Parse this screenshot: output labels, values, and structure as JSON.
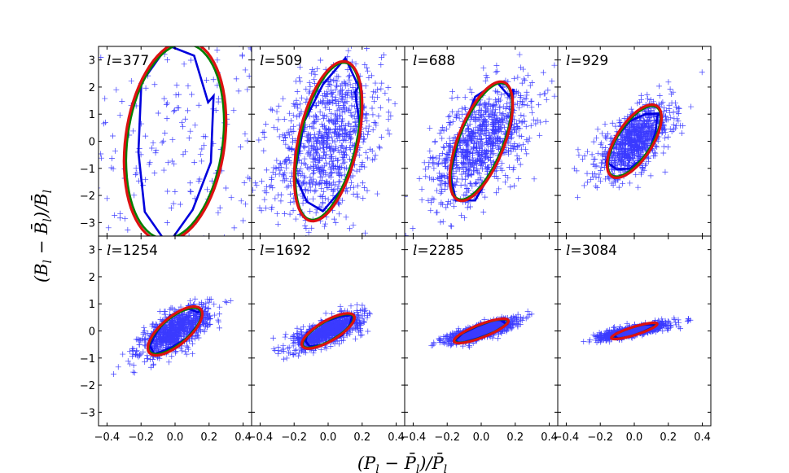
{
  "chart_data": {
    "type": "scatter",
    "layout": "2x4 grid of panels with shared axes",
    "xlabel": "(P_l - P̄_l)/P̄_l",
    "ylabel": "(B_l - B̄_l)/B̄_l",
    "xlim": [
      -0.45,
      0.45
    ],
    "ylim": [
      -3.5,
      3.5
    ],
    "xticks": [
      -0.4,
      -0.2,
      0.0,
      0.2,
      0.4
    ],
    "xtick_labels": [
      "−0.4",
      "−0.2",
      "0.0",
      "0.2",
      "0.4"
    ],
    "yticks": [
      -3,
      -2,
      -1,
      0,
      1,
      2,
      3
    ],
    "ytick_labels": [
      "−3",
      "−2",
      "−1",
      "0",
      "1",
      "2",
      "3"
    ],
    "label_prefix": "l =",
    "series_styles": [
      {
        "name": "samples",
        "marker": "+",
        "color": "#3b3bff"
      },
      {
        "name": "contour",
        "color": "#0000dd"
      },
      {
        "name": "ellipse-green",
        "color": "#008000"
      },
      {
        "name": "ellipse-red",
        "color": "#dd1111"
      }
    ],
    "panels": [
      {
        "ell": 377,
        "n_points": 420,
        "sx": 0.8,
        "sy": 2.3,
        "rho": 0.15,
        "ell_red": {
          "a": 0.3,
          "b": 3.7,
          "rho": 0.2
        },
        "ell_green": {
          "a": 0.288,
          "b": 3.6,
          "rho": 0.2
        },
        "contour": {
          "a": 0.235,
          "b": 3.6,
          "rho": 0.12
        }
      },
      {
        "ell": 509,
        "n_points": 900,
        "sx": 0.16,
        "sy": 1.45,
        "rho": 0.35,
        "ell_red": {
          "a": 0.2,
          "b": 2.95,
          "rho": 0.45
        },
        "ell_green": {
          "a": 0.192,
          "b": 2.9,
          "rho": 0.48
        },
        "contour": {
          "a": 0.185,
          "b": 2.8,
          "rho": 0.42
        }
      },
      {
        "ell": 688,
        "n_points": 900,
        "sx": 0.15,
        "sy": 1.1,
        "rho": 0.55,
        "ell_red": {
          "a": 0.185,
          "b": 2.2,
          "rho": 0.62
        },
        "ell_green": {
          "a": 0.18,
          "b": 2.15,
          "rho": 0.65
        },
        "contour": {
          "a": 0.19,
          "b": 2.2,
          "rho": 0.58
        }
      },
      {
        "ell": 929,
        "n_points": 900,
        "sx": 0.11,
        "sy": 0.65,
        "rho": 0.6,
        "ell_red": {
          "a": 0.16,
          "b": 1.35,
          "rho": 0.65
        },
        "ell_green": {
          "a": 0.155,
          "b": 1.3,
          "rho": 0.68
        },
        "contour": {
          "a": 0.15,
          "b": 1.15,
          "rho": 0.6
        }
      },
      {
        "ell": 1254,
        "n_points": 900,
        "sx": 0.1,
        "sy": 0.45,
        "rho": 0.68,
        "ell_red": {
          "a": 0.16,
          "b": 0.9,
          "rho": 0.7
        },
        "ell_green": {
          "a": 0.155,
          "b": 0.85,
          "rho": 0.72
        },
        "contour": {
          "a": 0.15,
          "b": 0.82,
          "rho": 0.66
        }
      },
      {
        "ell": 1692,
        "n_points": 900,
        "sx": 0.1,
        "sy": 0.32,
        "rho": 0.72,
        "ell_red": {
          "a": 0.155,
          "b": 0.65,
          "rho": 0.75
        },
        "ell_green": {
          "a": 0.15,
          "b": 0.62,
          "rho": 0.77
        },
        "contour": {
          "a": 0.15,
          "b": 0.6,
          "rho": 0.72
        }
      },
      {
        "ell": 2285,
        "n_points": 900,
        "sx": 0.1,
        "sy": 0.22,
        "rho": 0.8,
        "ell_red": {
          "a": 0.16,
          "b": 0.45,
          "rho": 0.82
        },
        "ell_green": {
          "a": 0.155,
          "b": 0.43,
          "rho": 0.83
        },
        "contour": {
          "a": 0.15,
          "b": 0.42,
          "rho": 0.8
        }
      },
      {
        "ell": 3084,
        "n_points": 900,
        "sx": 0.1,
        "sy": 0.15,
        "rho": 0.82,
        "ell_red": {
          "a": 0.135,
          "b": 0.3,
          "rho": 0.85
        },
        "ell_green": {
          "a": 0.13,
          "b": 0.29,
          "rho": 0.86
        },
        "contour": {
          "a": 0.125,
          "b": 0.28,
          "rho": 0.82
        }
      }
    ]
  }
}
